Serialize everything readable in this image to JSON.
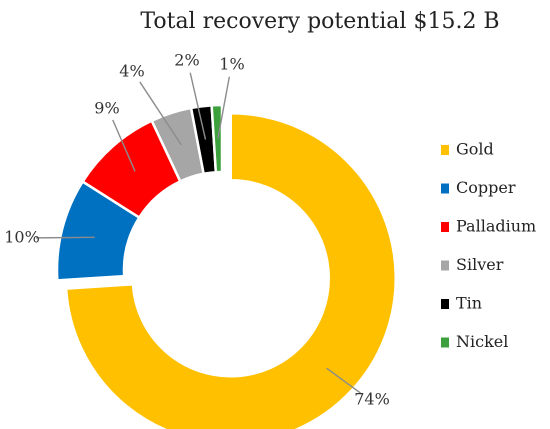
{
  "chart_data": {
    "type": "pie",
    "subtype": "donut",
    "title": "Total recovery potential $15.2 B",
    "categories": [
      "Gold",
      "Copper",
      "Palladium",
      "Silver",
      "Tin",
      "Nickel"
    ],
    "values": [
      74,
      10,
      9,
      4,
      2,
      1
    ],
    "value_labels": [
      "74%",
      "10%",
      "9%",
      "4%",
      "2%",
      "1%"
    ],
    "unit": "%",
    "colors": [
      "#FFC000",
      "#0070C0",
      "#FF0000",
      "#A6A6A6",
      "#000000",
      "#3CA03C"
    ],
    "exploded": "Gold",
    "legend": "right",
    "data_labels": "outside with leader lines"
  }
}
